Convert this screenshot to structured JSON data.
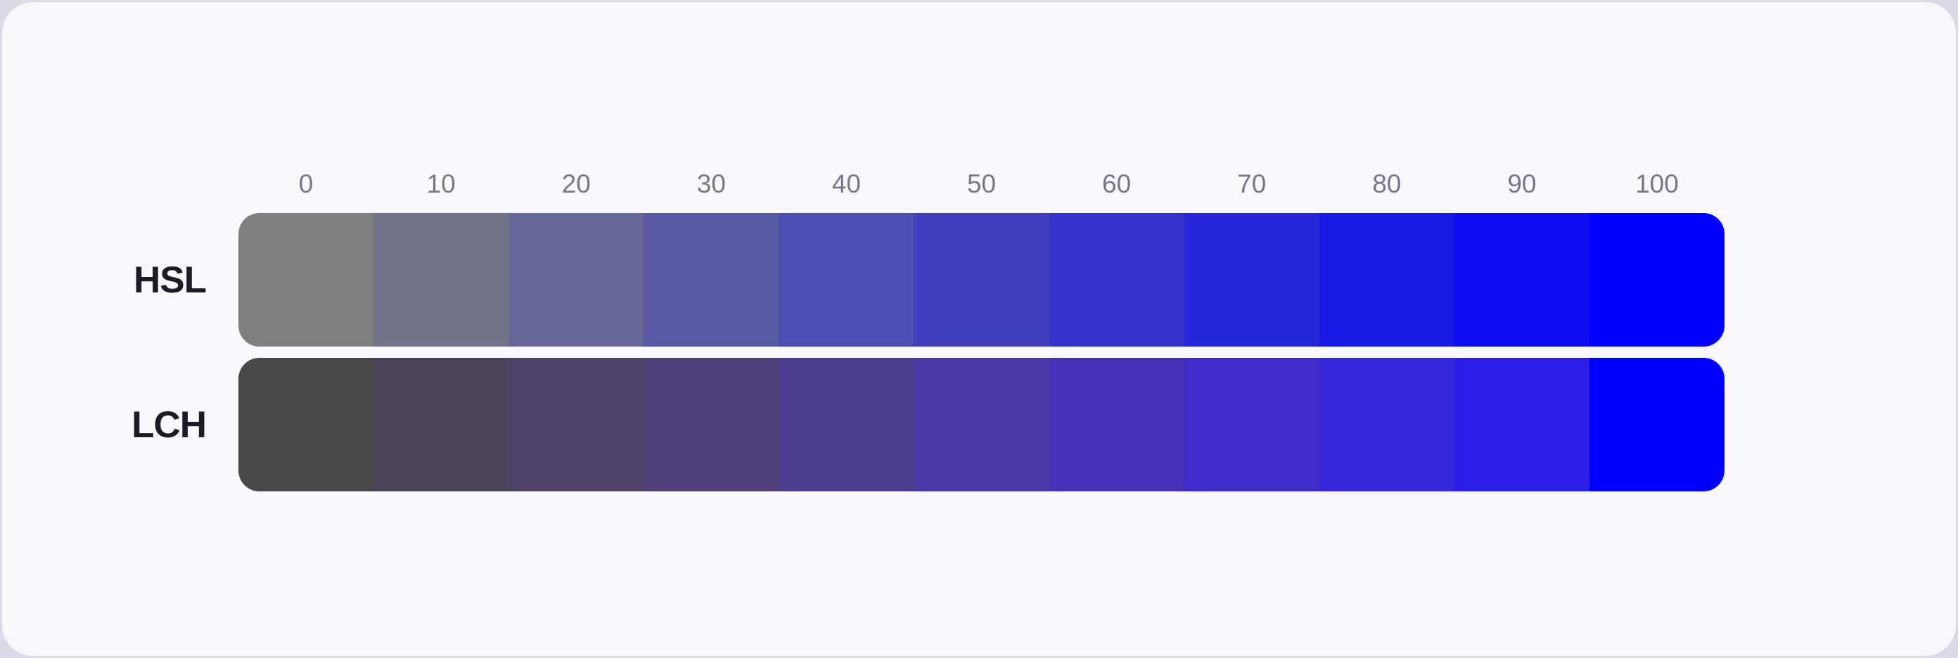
{
  "page": {
    "background_outer": "#DBDAE6",
    "background_card": "#F9F9FD",
    "tick_text_color": "#7B7589",
    "label_text_color": "#1D1C26"
  },
  "chart_data": {
    "type": "heatmap",
    "title": "",
    "xlabel": "",
    "ylabel": "",
    "x_ticks": [
      "0",
      "10",
      "20",
      "30",
      "40",
      "50",
      "60",
      "70",
      "80",
      "90",
      "100"
    ],
    "x_range": [
      0,
      100
    ],
    "x_step": 10,
    "grid": false,
    "legend_position": "none",
    "rows": [
      {
        "label": "HSL",
        "colors": [
          "#808080",
          "#73738C",
          "#666699",
          "#5959A6",
          "#4D4DB3",
          "#4040BF",
          "#3333CC",
          "#2626D9",
          "#1A1AE6",
          "#0D0DF2",
          "#0000FF"
        ]
      },
      {
        "label": "LCH",
        "colors": [
          "#484848",
          "#4B4459",
          "#4E4269",
          "#4E3F79",
          "#4D3D90",
          "#4A38A4",
          "#4532B8",
          "#3F2CCA",
          "#3928DB",
          "#2C1EE9",
          "#0000FF"
        ]
      }
    ]
  }
}
